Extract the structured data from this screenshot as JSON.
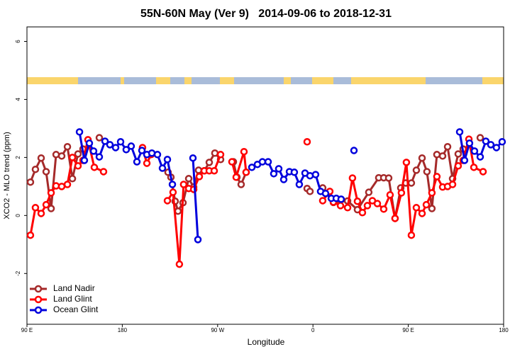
{
  "chart_data": {
    "type": "line",
    "title": "55N-60N May (Ver 9)   2014-09-06 to 2018-12-31",
    "xlabel": "Longitude",
    "ylabel": "XCO2 - MLO trend (ppm)",
    "xlim": [
      90,
      540
    ],
    "xticks": [
      {
        "value": 90,
        "label": "90 E"
      },
      180,
      {
        "value": 270,
        "label": "90 W"
      },
      {
        "value": 360,
        "label": "0"
      },
      {
        "value": 450,
        "label": "90 E"
      },
      {
        "value": 540,
        "label": "180"
      }
    ],
    "ylim": [
      -3.75,
      6.5
    ],
    "yticks": [
      -2,
      0,
      2,
      4,
      6
    ],
    "legend": "bottom-left",
    "series": [
      {
        "name": "Land Nadir",
        "color": "#a52a2a",
        "x": [
          93.3,
          98.0,
          103.4,
          108.1,
          112.8,
          117.5,
          122.8,
          128.2,
          132.9,
          138.2,
          142.9,
          null,
          158.3,
          null,
          223.2,
          225.9,
          229.9,
          232.6,
          237.3,
          242.7,
          247.4,
          252.0,
          257.4,
          262.1,
          267.4,
          272.8,
          null,
          284.9,
          288.2,
          292.2,
          296.9,
          null,
          354.5,
          357.2,
          null,
          369.2,
          379.3,
          392.7,
          402.0,
          412.7,
          422.1,
          426.8,
          431.5,
          437.5,
          442.9,
          447.6,
          452.9,
          457.6,
          463.0,
          467.6,
          472.3,
          477.0,
          482.4,
          487.1,
          491.8,
          497.1,
          501.8,
          null,
          517.9
        ],
        "values": [
          1.15,
          1.59,
          1.98,
          1.51,
          0.24,
          2.1,
          2.05,
          2.37,
          1.27,
          2.12,
          2.29,
          null,
          2.68,
          null,
          1.49,
          1.32,
          0.49,
          0.15,
          0.44,
          1.27,
          0.98,
          1.56,
          1.54,
          1.83,
          2.15,
          1.93,
          null,
          1.85,
          1.32,
          1.07,
          1.49,
          null,
          0.93,
          0.83,
          null,
          0.95,
          0.45,
          0.5,
          0.2,
          0.8,
          1.3,
          1.3,
          1.29,
          -0.1,
          0.95,
          1.12,
          1.12,
          1.56,
          1.98,
          1.51,
          0.24,
          2.1,
          2.05,
          2.37,
          1.27,
          2.12,
          2.29,
          null,
          2.68
        ]
      },
      {
        "name": "Land Glint",
        "color": "#ff0000",
        "x": [
          93.3,
          98.0,
          103.4,
          108.1,
          112.8,
          117.5,
          122.8,
          128.2,
          132.9,
          138.2,
          142.9,
          147.6,
          153.6,
          162.3,
          null,
          199.1,
          203.2,
          207.2,
          null,
          222.6,
          227.9,
          233.9,
          237.9,
          242.7,
          247.4,
          252.7,
          257.4,
          262.1,
          266.8,
          272.8,
          null,
          283.5,
          287.5,
          294.9,
          296.9,
          null,
          354.5,
          null,
          369.2,
          375.9,
          379.3,
          386.0,
          392.7,
          397.3,
          402.0,
          406.7,
          411.4,
          416.1,
          420.8,
          426.8,
          432.8,
          437.5,
          443.5,
          448.2,
          452.9,
          457.6,
          463.0,
          467.0,
          472.3,
          477.0,
          482.4,
          487.1,
          491.8,
          497.1,
          501.8,
          507.2,
          511.9,
          520.6
        ],
        "values": [
          -0.68,
          0.27,
          0.07,
          0.37,
          0.78,
          1.02,
          1.0,
          1.07,
          2.0,
          1.71,
          1.9,
          2.61,
          1.66,
          1.51,
          null,
          2.34,
          1.8,
          2.1,
          null,
          0.51,
          0.8,
          -1.68,
          1.07,
          0.93,
          0.9,
          1.34,
          1.54,
          1.54,
          1.54,
          2.1,
          null,
          1.85,
          1.32,
          2.2,
          1.49,
          null,
          2.54,
          null,
          0.51,
          0.83,
          0.46,
          0.34,
          0.27,
          1.29,
          0.49,
          0.1,
          0.34,
          0.51,
          0.41,
          0.22,
          0.71,
          -0.1,
          0.78,
          1.83,
          -0.68,
          0.27,
          0.07,
          0.37,
          0.78,
          1.34,
          0.98,
          1.0,
          1.07,
          1.71,
          1.9,
          2.63,
          1.66,
          1.51
        ]
      },
      {
        "name": "Ocean Glint",
        "color": "#0000dd",
        "x": [
          139.6,
          144.2,
          148.9,
          152.9,
          158.3,
          163.7,
          168.3,
          173.7,
          178.4,
          183.7,
          188.4,
          193.8,
          198.5,
          203.2,
          207.9,
          213.2,
          217.9,
          222.6,
          227.3,
          null,
          246.7,
          251.4,
          null,
          302.3,
          307.6,
          312.3,
          317.7,
          323.0,
          327.7,
          332.4,
          337.8,
          342.4,
          347.1,
          352.5,
          357.2,
          362.5,
          367.2,
          371.9,
          377.3,
          382.0,
          386.6,
          null,
          398.7,
          null,
          498.5,
          503.1,
          507.8,
          512.5,
          517.9,
          523.2,
          527.9,
          533.2,
          538.6
        ],
        "values": [
          2.88,
          1.9,
          2.49,
          2.22,
          2.02,
          2.56,
          2.44,
          2.34,
          2.54,
          2.27,
          2.39,
          1.85,
          2.24,
          2.1,
          2.15,
          2.1,
          1.63,
          1.93,
          1.07,
          null,
          1.98,
          -0.83,
          null,
          1.66,
          1.76,
          1.85,
          1.85,
          1.44,
          1.61,
          1.24,
          1.51,
          1.49,
          1.07,
          1.46,
          1.37,
          1.41,
          0.83,
          0.76,
          0.59,
          0.59,
          0.56,
          null,
          2.24,
          null,
          2.88,
          1.9,
          2.49,
          2.22,
          2.02,
          2.56,
          2.44,
          2.34,
          2.54
        ]
      }
    ]
  }
}
